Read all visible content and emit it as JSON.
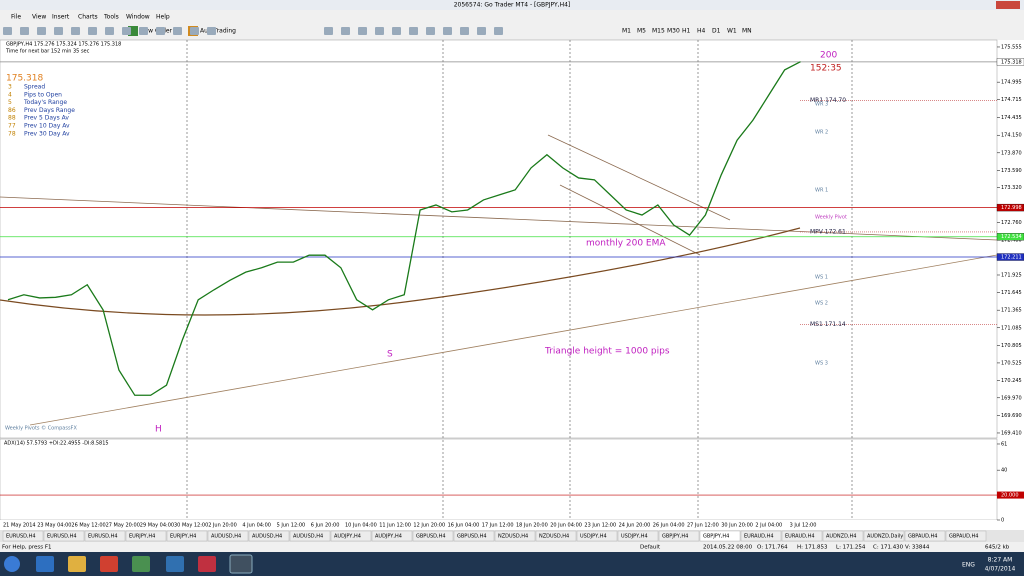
{
  "window": {
    "title": "2056574: Go Trader MT4 - [GBPJPY,H4]",
    "menu": [
      "File",
      "View",
      "Insert",
      "Charts",
      "Tools",
      "Window",
      "Help"
    ],
    "toolbar": [
      "New Order",
      "AutoTrading"
    ],
    "timeframes": [
      "M1",
      "M5",
      "M15",
      "M30",
      "H1",
      "H4",
      "D1",
      "W1",
      "MN"
    ]
  },
  "chart_data": {
    "type": "line",
    "symbol_info": "GBPJPY,H4  175.276 175.324 175.276 175.318",
    "timer": "Time for next bar 152 min 35 sec",
    "bid": "175.318",
    "info_rows": [
      [
        "3",
        "Spread"
      ],
      [
        "4",
        "Pips to Open"
      ],
      [
        "5",
        "Today's Range"
      ],
      [
        "86",
        "Prev Days Range"
      ],
      [
        "88",
        "Prev 5 Days Av"
      ],
      [
        "77",
        "Prev 10 Day Av"
      ],
      [
        "78",
        "Prev 30 Day Av"
      ]
    ],
    "color": "#1a7a1a",
    "values": [
      171.53,
      171.61,
      171.56,
      171.57,
      171.61,
      171.77,
      171.37,
      170.41,
      170.01,
      170.01,
      170.17,
      170.89,
      171.53,
      171.69,
      171.84,
      171.97,
      172.04,
      172.13,
      172.13,
      172.24,
      172.24,
      172.04,
      171.53,
      171.37,
      171.53,
      171.61,
      172.96,
      173.04,
      172.93,
      172.96,
      173.12,
      173.2,
      173.28,
      173.63,
      173.84,
      173.63,
      173.47,
      173.44,
      173.2,
      172.96,
      172.88,
      173.04,
      172.72,
      172.56,
      172.88,
      173.52,
      174.07,
      174.39,
      174.79,
      175.19,
      175.32
    ],
    "ylim": [
      169.33,
      175.666
    ],
    "yticks": [
      175.555,
      174.995,
      174.715,
      174.435,
      {
        "value": 174.15,
        "label": "174.150"
      },
      {
        "value": 173.87,
        "label": "173.870"
      },
      {
        "value": 173.59,
        "label": "173.590"
      },
      {
        "value": 173.32,
        "label": "173.320"
      },
      {
        "value": 172.76,
        "label": "172.760"
      },
      {
        "value": 172.48,
        "label": "172.480"
      },
      171.925,
      171.645,
      171.365,
      171.085,
      170.805,
      170.525,
      170.245,
      {
        "value": 169.97,
        "label": "169.970"
      },
      {
        "value": 169.69,
        "label": "169.690"
      },
      {
        "value": 169.41,
        "label": "169.410"
      }
    ],
    "levels": [
      {
        "value": 175.318,
        "color": "#ffffff"
      },
      {
        "value": 172.998,
        "color": "#c00000"
      },
      {
        "value": 172.534,
        "color": "#40e040"
      },
      {
        "value": 172.211,
        "color": "#2030c0"
      }
    ],
    "pivots": [
      {
        "label": "MR1  174.70",
        "value": 174.7
      },
      {
        "label": "MPV  172.61",
        "value": 172.61
      },
      {
        "label": "MS1  171.14",
        "value": 171.14
      }
    ],
    "weekly_pivots": [
      {
        "label": "WR 3",
        "value": 174.65
      },
      {
        "label": "WR 2",
        "value": 174.2
      },
      {
        "label": "WR 1",
        "value": 173.28
      },
      {
        "label": "Weekly Pivot",
        "value": 172.85
      },
      {
        "label": "WS 1",
        "value": 171.89
      },
      {
        "label": "WS 2",
        "value": 171.48
      },
      {
        "label": "WS 3",
        "value": 170.52
      }
    ],
    "annotations": {
      "count": "200",
      "countdown": "152:35",
      "ema": "monthly 200 EMA",
      "triangle": "Triangle height = 1000 pips",
      "shoulder": "S",
      "head": "H"
    },
    "watermark": "Weekly Pivots © CompassFX",
    "xticks": [
      "21 May 2014",
      "23 May 04:00",
      "26 May 12:00",
      "27 May 20:00",
      "29 May 04:00",
      "30 May 12:00",
      "2 Jun 20:00",
      "4 Jun 04:00",
      "5 Jun 12:00",
      "6 Jun 20:00",
      "10 Jun 04:00",
      "11 Jun 12:00",
      "12 Jun 20:00",
      "16 Jun 04:00",
      "17 Jun 12:00",
      "18 Jun 20:00",
      "20 Jun 04:00",
      "23 Jun 12:00",
      "24 Jun 20:00",
      "26 Jun 04:00",
      "27 Jun 12:00",
      "30 Jun 20:00",
      "2 Jul 04:00",
      "3 Jul 12:00"
    ]
  },
  "indicator": {
    "title": "ADX(14) 57.5793 +DI:22.4955 -DI:8.5815",
    "ylim": [
      0,
      65
    ],
    "yticks": [
      61,
      40,
      20,
      0
    ],
    "level": {
      "value": 20,
      "label": "20.000"
    }
  },
  "tabs": [
    "EURUSD,H4",
    "EURUSD,H4",
    "EURUSD,H4",
    "EURJPY,H4",
    "EURJPY,H4",
    "AUDUSD,H4",
    "AUDUSD,H4",
    "AUDUSD,H4",
    "AUDJPY,H4",
    "AUDJPY,H4",
    "GBPUSD,H4",
    "GBPUSD,H4",
    "NZDUSD,H4",
    "NZDUSD,H4",
    "USDJPY,H4",
    "USDJPY,H4",
    "GBPJPY,H4",
    "GBPJPY,H4",
    "EURAUD,H4",
    "EURAUD,H4",
    "AUDNZD,H4",
    "AUDNZD,Daily",
    "GBPAUD,H4",
    "GBPAUD,H4"
  ],
  "active_tab": 17,
  "status": [
    "For Help, press F1",
    "Default",
    "2014.05.22 08:00",
    "O: 171.764",
    "H: 171.853",
    "L: 171.254",
    "C: 171.430",
    "V: 33844",
    "645/2 kb"
  ],
  "taskbar": {
    "language": "ENG",
    "time": "8:27 AM",
    "date": "4/07/2014"
  }
}
